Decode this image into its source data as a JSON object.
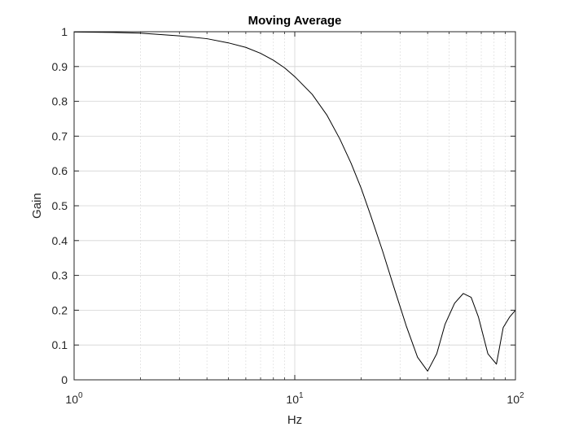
{
  "chart_data": {
    "type": "line",
    "title": "Moving Average",
    "xlabel": "Hz",
    "ylabel": "Gain",
    "xscale": "log",
    "xlim": [
      1,
      100
    ],
    "ylim": [
      0,
      1
    ],
    "grid": true,
    "xticks": [
      {
        "value": 1,
        "base": "10",
        "exp": "0"
      },
      {
        "value": 10,
        "base": "10",
        "exp": "1"
      },
      {
        "value": 100,
        "base": "10",
        "exp": "2"
      }
    ],
    "yticks": [
      0,
      0.1,
      0.2,
      0.3,
      0.4,
      0.5,
      0.6,
      0.7,
      0.8,
      0.9,
      1
    ],
    "ytick_labels": [
      "0",
      "0.1",
      "0.2",
      "0.3",
      "0.4",
      "0.5",
      "0.6",
      "0.7",
      "0.8",
      "0.9",
      "1"
    ],
    "series": [
      {
        "color": "#000000",
        "x": [
          1,
          1.5,
          2,
          3,
          4,
          5,
          6,
          7,
          8,
          9,
          10,
          12,
          14,
          16,
          18,
          20,
          22,
          25,
          28,
          32,
          36,
          40,
          44,
          48,
          53,
          58,
          63,
          68,
          75,
          82,
          88,
          94,
          100
        ],
        "y": [
          0.999,
          0.998,
          0.996,
          0.988,
          0.98,
          0.968,
          0.955,
          0.938,
          0.918,
          0.896,
          0.871,
          0.82,
          0.76,
          0.692,
          0.622,
          0.55,
          0.475,
          0.37,
          0.27,
          0.155,
          0.065,
          0.025,
          0.075,
          0.16,
          0.22,
          0.248,
          0.237,
          0.18,
          0.075,
          0.045,
          0.15,
          0.18,
          0.2
        ]
      }
    ]
  }
}
